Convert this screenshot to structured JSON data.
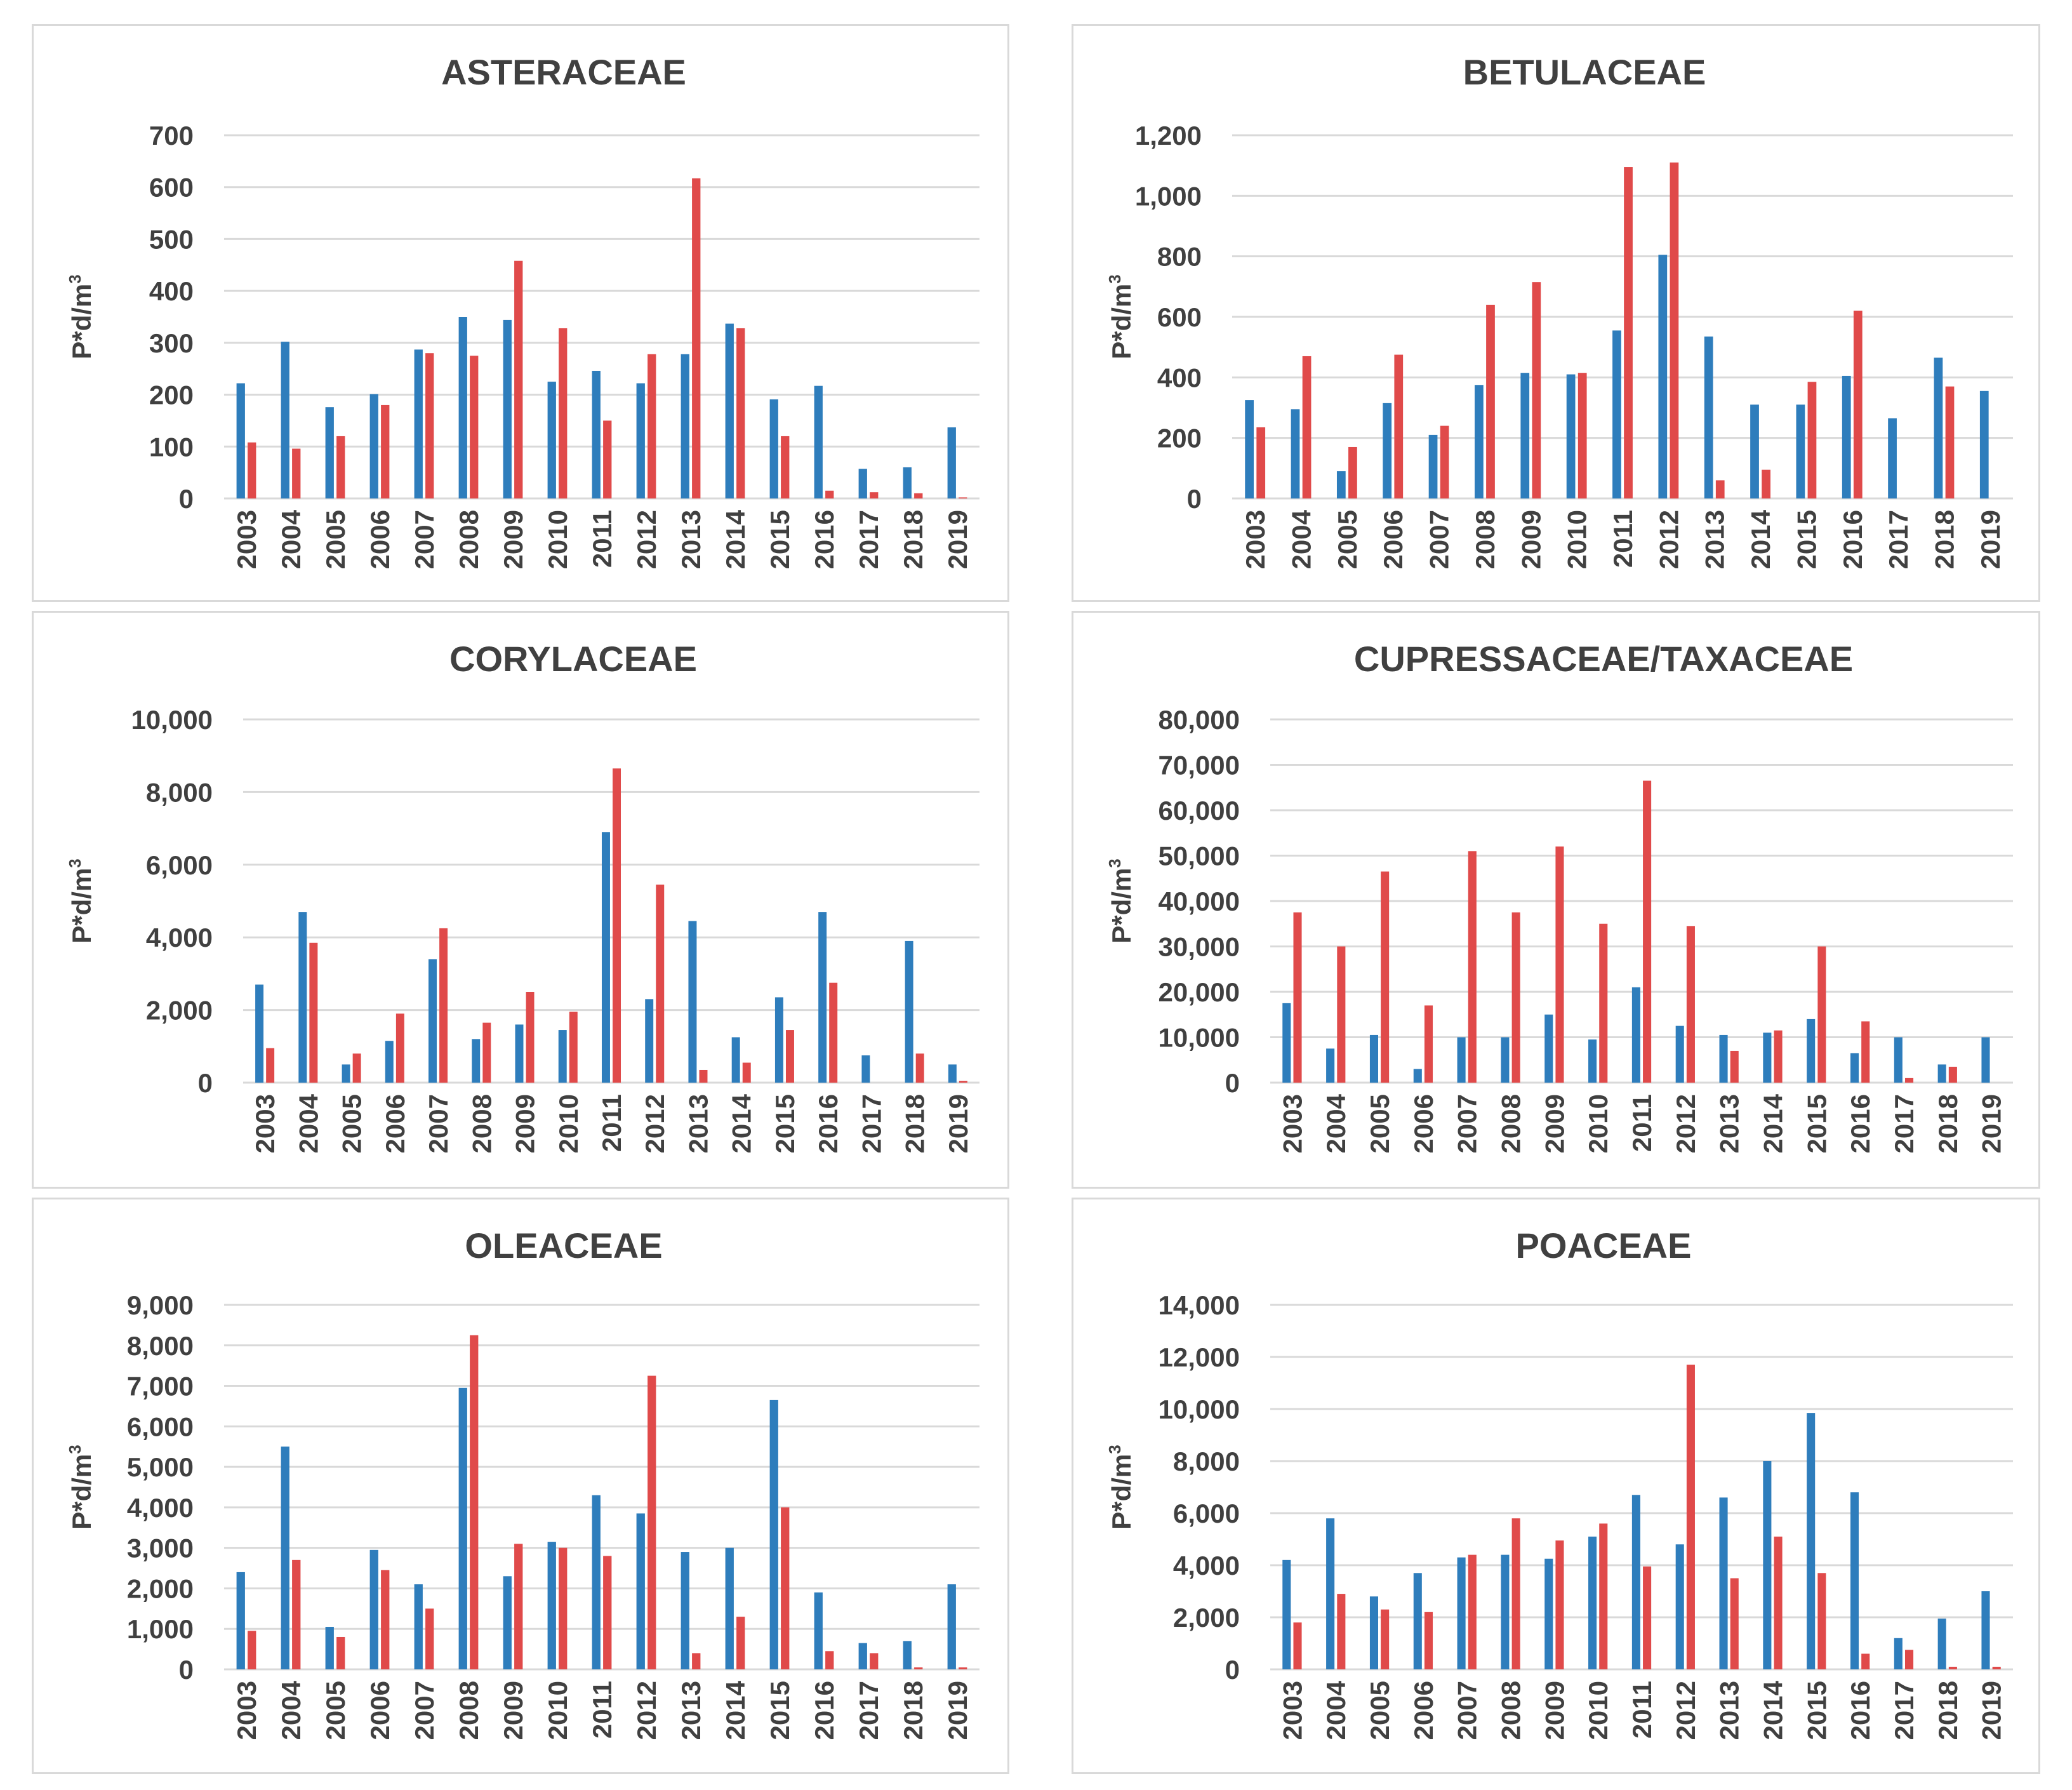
{
  "colors": {
    "series_a": "#2e7dbc",
    "series_b": "#e04a4a"
  },
  "chart_data": [
    {
      "type": "bar",
      "title": "ASTERACEAE",
      "ylabel": "P*d/m",
      "ylabel_sup": "3",
      "xlabel": "",
      "categories": [
        "2003",
        "2004",
        "2005",
        "2006",
        "2007",
        "2008",
        "2009",
        "2010",
        "2011",
        "2012",
        "2013",
        "2014",
        "2015",
        "2016",
        "2017",
        "2018",
        "2019"
      ],
      "ylim": [
        0,
        700
      ],
      "yticks": [
        0,
        100,
        200,
        300,
        400,
        500,
        600,
        700
      ],
      "ytick_labels": [
        "0",
        "100",
        "200",
        "300",
        "400",
        "500",
        "600",
        "700"
      ],
      "series": [
        {
          "name": "series_a",
          "values": [
            222,
            302,
            176,
            201,
            287,
            350,
            344,
            225,
            246,
            222,
            278,
            337,
            191,
            217,
            57,
            60,
            137
          ]
        },
        {
          "name": "series_b",
          "values": [
            108,
            96,
            120,
            180,
            280,
            275,
            458,
            328,
            150,
            278,
            617,
            328,
            120,
            15,
            12,
            10,
            2
          ]
        }
      ]
    },
    {
      "type": "bar",
      "title": "BETULACEAE",
      "ylabel": "P*d/m",
      "ylabel_sup": "3",
      "xlabel": "",
      "categories": [
        "2003",
        "2004",
        "2005",
        "2006",
        "2007",
        "2008",
        "2009",
        "2010",
        "2011",
        "2012",
        "2013",
        "2014",
        "2015",
        "2016",
        "2017",
        "2018",
        "2019"
      ],
      "ylim": [
        0,
        1200
      ],
      "yticks": [
        0,
        200,
        400,
        600,
        800,
        1000,
        1200
      ],
      "ytick_labels": [
        "0",
        "200",
        "400",
        "600",
        "800",
        "1,000",
        "1,200"
      ],
      "series": [
        {
          "name": "series_a",
          "values": [
            325,
            295,
            90,
            315,
            210,
            375,
            415,
            410,
            555,
            805,
            535,
            310,
            310,
            405,
            265,
            465,
            355
          ]
        },
        {
          "name": "series_b",
          "values": [
            235,
            470,
            170,
            475,
            240,
            640,
            715,
            415,
            1095,
            1110,
            60,
            95,
            385,
            620,
            0,
            370,
            0
          ]
        }
      ]
    },
    {
      "type": "bar",
      "title": "CORYLACEAE",
      "ylabel": "P*d/m",
      "ylabel_sup": "3",
      "xlabel": "",
      "categories": [
        "2003",
        "2004",
        "2005",
        "2006",
        "2007",
        "2008",
        "2009",
        "2010",
        "2011",
        "2012",
        "2013",
        "2014",
        "2015",
        "2016",
        "2017",
        "2018",
        "2019"
      ],
      "ylim": [
        0,
        10000
      ],
      "yticks": [
        0,
        2000,
        4000,
        6000,
        8000,
        10000
      ],
      "ytick_labels": [
        "0",
        "2,000",
        "4,000",
        "6,000",
        "8,000",
        "10,000"
      ],
      "series": [
        {
          "name": "series_a",
          "values": [
            2700,
            4700,
            500,
            1150,
            3400,
            1200,
            1600,
            1450,
            6900,
            2300,
            4450,
            1250,
            2350,
            4700,
            750,
            3900,
            500
          ]
        },
        {
          "name": "series_b",
          "values": [
            950,
            3850,
            800,
            1900,
            4250,
            1650,
            2500,
            1950,
            8650,
            5450,
            350,
            550,
            1450,
            2750,
            0,
            800,
            50
          ]
        }
      ]
    },
    {
      "type": "bar",
      "title": "CUPRESSACEAE/TAXACEAE",
      "ylabel": "P*d/m",
      "ylabel_sup": "3",
      "xlabel": "",
      "categories": [
        "2003",
        "2004",
        "2005",
        "2006",
        "2007",
        "2008",
        "2009",
        "2010",
        "2011",
        "2012",
        "2013",
        "2014",
        "2015",
        "2016",
        "2017",
        "2018",
        "2019"
      ],
      "ylim": [
        0,
        80000
      ],
      "yticks": [
        0,
        10000,
        20000,
        30000,
        40000,
        50000,
        60000,
        70000,
        80000
      ],
      "ytick_labels": [
        "0",
        "10,000",
        "20,000",
        "30,000",
        "40,000",
        "50,000",
        "60,000",
        "70,000",
        "80,000"
      ],
      "series": [
        {
          "name": "series_a",
          "values": [
            17500,
            7500,
            10500,
            3000,
            10000,
            10000,
            15000,
            9500,
            21000,
            12500,
            10500,
            11000,
            14000,
            6500,
            10000,
            4000,
            10000
          ]
        },
        {
          "name": "series_b",
          "values": [
            37500,
            30000,
            46500,
            17000,
            51000,
            37500,
            52000,
            35000,
            66500,
            34500,
            7000,
            11500,
            30000,
            13500,
            1000,
            3500,
            0
          ]
        }
      ]
    },
    {
      "type": "bar",
      "title": "OLEACEAE",
      "ylabel": "P*d/m",
      "ylabel_sup": "3",
      "xlabel": "",
      "categories": [
        "2003",
        "2004",
        "2005",
        "2006",
        "2007",
        "2008",
        "2009",
        "2010",
        "2011",
        "2012",
        "2013",
        "2014",
        "2015",
        "2016",
        "2017",
        "2018",
        "2019"
      ],
      "ylim": [
        0,
        9000
      ],
      "yticks": [
        0,
        1000,
        2000,
        3000,
        4000,
        5000,
        6000,
        7000,
        8000,
        9000
      ],
      "ytick_labels": [
        "0",
        "1,000",
        "2,000",
        "3,000",
        "4,000",
        "5,000",
        "6,000",
        "7,000",
        "8,000",
        "9,000"
      ],
      "series": [
        {
          "name": "series_a",
          "values": [
            2400,
            5500,
            1050,
            2950,
            2100,
            6950,
            2300,
            3150,
            4300,
            3850,
            2900,
            3000,
            6650,
            1900,
            650,
            700,
            2100
          ]
        },
        {
          "name": "series_b",
          "values": [
            950,
            2700,
            800,
            2450,
            1500,
            8250,
            3100,
            3000,
            2800,
            7250,
            400,
            1300,
            4000,
            450,
            400,
            50,
            50
          ]
        }
      ]
    },
    {
      "type": "bar",
      "title": "POACEAE",
      "ylabel": "P*d/m",
      "ylabel_sup": "3",
      "xlabel": "",
      "categories": [
        "2003",
        "2004",
        "2005",
        "2006",
        "2007",
        "2008",
        "2009",
        "2010",
        "2011",
        "2012",
        "2013",
        "2014",
        "2015",
        "2016",
        "2017",
        "2018",
        "2019"
      ],
      "ylim": [
        0,
        14000
      ],
      "yticks": [
        0,
        2000,
        4000,
        6000,
        8000,
        10000,
        12000,
        14000
      ],
      "ytick_labels": [
        "0",
        "2,000",
        "4,000",
        "6,000",
        "8,000",
        "10,000",
        "12,000",
        "14,000"
      ],
      "series": [
        {
          "name": "series_a",
          "values": [
            4200,
            5800,
            2800,
            3700,
            4300,
            4400,
            4250,
            5100,
            6700,
            4800,
            6600,
            8000,
            9850,
            6800,
            1200,
            1950,
            3000
          ]
        },
        {
          "name": "series_b",
          "values": [
            1800,
            2900,
            2300,
            2200,
            4400,
            5800,
            4950,
            5600,
            3950,
            11700,
            3500,
            5100,
            3700,
            600,
            750,
            100,
            100
          ]
        }
      ]
    }
  ]
}
